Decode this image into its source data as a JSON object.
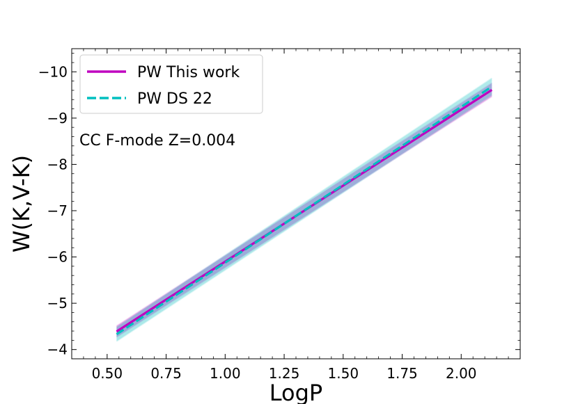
{
  "chart_data": {
    "type": "line",
    "xlabel": "LogP",
    "ylabel": "W(K,V-K)",
    "xlim": [
      0.35,
      2.25
    ],
    "ylim": [
      -3.8,
      -10.5
    ],
    "y_inverted": true,
    "xticks": [
      0.5,
      0.75,
      1.0,
      1.25,
      1.5,
      1.75,
      2.0
    ],
    "xtick_labels": [
      "0.50",
      "0.75",
      "1.00",
      "1.25",
      "1.50",
      "1.75",
      "2.00"
    ],
    "yticks": [
      -4,
      -5,
      -6,
      -7,
      -8,
      -9,
      -10
    ],
    "ytick_labels": [
      "−4",
      "−5",
      "−6",
      "−7",
      "−8",
      "−9",
      "−10"
    ],
    "annotation": "CC F-mode Z=0.004",
    "legend_position": "upper-left",
    "grid": false,
    "series": [
      {
        "name": "PW This work",
        "color": "#bf00bf",
        "style": "solid",
        "x": [
          0.54,
          2.13
        ],
        "y": [
          -4.39,
          -9.61
        ],
        "band_halfwidth": 0.12
      },
      {
        "name": "PW DS 22",
        "color": "#00bfbf",
        "style": "dashed",
        "x": [
          0.54,
          2.13
        ],
        "y": [
          -4.33,
          -9.68
        ],
        "band_halfwidth": 0.15
      }
    ]
  }
}
